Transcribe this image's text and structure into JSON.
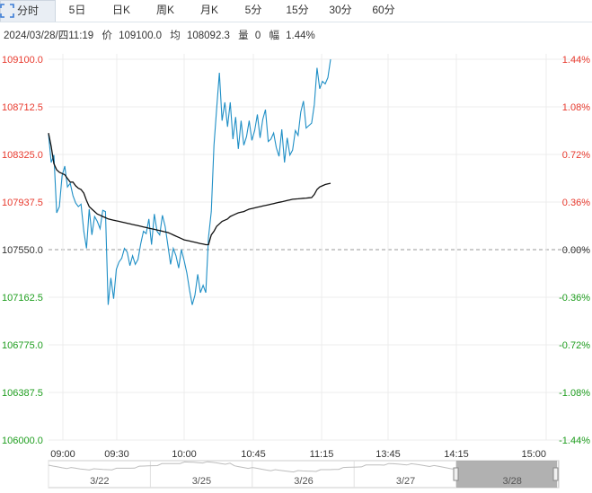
{
  "tabs": [
    {
      "label": "分时",
      "active": true
    },
    {
      "label": "5日",
      "active": false
    },
    {
      "label": "日K",
      "active": false
    },
    {
      "label": "周K",
      "active": false
    },
    {
      "label": "月K",
      "active": false
    },
    {
      "label": "5分",
      "active": false
    },
    {
      "label": "15分",
      "active": false
    },
    {
      "label": "30分",
      "active": false
    },
    {
      "label": "60分",
      "active": false
    }
  ],
  "fullscreen_icon": "expand-icon",
  "info": {
    "datetime": "2024/03/28/四11:19",
    "price_label": "价",
    "price": "109100.0",
    "avg_label": "均",
    "avg": "108092.3",
    "vol_label": "量",
    "vol": "0",
    "pct_label": "幅",
    "pct": "1.44%"
  },
  "colors": {
    "up": "#e83a2e",
    "down": "#1f9e1f",
    "flat": "#333333",
    "price_line": "#1f8fc6",
    "avg_line": "#111111",
    "grid": "#ececec",
    "navigator_fill": "#a3a3a3"
  },
  "chart_data": {
    "type": "line",
    "x_ticks": [
      "09:00",
      "09:30",
      "10:00",
      "10:45",
      "11:15",
      "13:45",
      "14:15",
      "15:00"
    ],
    "y_ticks": [
      "109100.0",
      "108712.5",
      "108325.0",
      "107937.5",
      "107550.0",
      "107162.5",
      "106775.0",
      "106387.5",
      "106000.0"
    ],
    "y_right_ticks": [
      "1.44%",
      "1.08%",
      "0.72%",
      "0.36%",
      "0.00%",
      "-0.36%",
      "-0.72%",
      "-1.08%",
      "-1.44%"
    ],
    "ylim": [
      106000.0,
      109100.0
    ],
    "baseline": 107550.0,
    "series": [
      {
        "values": [
          108490,
          108260,
          108320,
          107850,
          107900,
          108150,
          108230,
          108060,
          108090,
          107990,
          107930,
          107900,
          107920,
          107700,
          107560,
          107880,
          107670,
          107820,
          107780,
          107720,
          107870,
          107860,
          107100,
          107320,
          107150,
          107390,
          107450,
          107480,
          107560,
          107530,
          107420,
          107500,
          107430,
          107470,
          107600,
          107700,
          107680,
          107800,
          107590,
          107840,
          107700,
          107670,
          107830,
          107740,
          107590,
          107430,
          107560,
          107500,
          107400,
          107550,
          107460,
          107360,
          107220,
          107100,
          107180,
          107350,
          107200,
          107260,
          107200,
          107650,
          107860,
          108400,
          108700,
          108990,
          108600,
          108750,
          108550,
          108750,
          108450,
          108630,
          108370,
          108600,
          108400,
          108470,
          108600,
          108440,
          108520,
          108650,
          108460,
          108610,
          108690,
          108430,
          108450,
          108500,
          108380,
          108310,
          108530,
          108260,
          108460,
          108320,
          108360,
          108520,
          108480,
          108670,
          108760,
          108540,
          108560,
          108580,
          108730,
          109030,
          108860,
          108920,
          108900,
          108950,
          109100
        ]
      },
      {
        "values": [
          108500,
          108390,
          108250,
          108200,
          108180,
          108170,
          108160,
          108130,
          108100,
          108100,
          108070,
          108050,
          108040,
          108010,
          107950,
          107900,
          107880,
          107860,
          107840,
          107830,
          107820,
          107810,
          107800,
          107795,
          107790,
          107785,
          107780,
          107775,
          107770,
          107765,
          107760,
          107755,
          107750,
          107745,
          107740,
          107735,
          107730,
          107725,
          107720,
          107715,
          107710,
          107705,
          107700,
          107695,
          107690,
          107680,
          107670,
          107660,
          107650,
          107640,
          107630,
          107625,
          107620,
          107615,
          107610,
          107605,
          107600,
          107595,
          107590,
          107590,
          107670,
          107700,
          107740,
          107760,
          107780,
          107790,
          107800,
          107820,
          107830,
          107840,
          107850,
          107855,
          107860,
          107870,
          107880,
          107885,
          107890,
          107895,
          107900,
          107905,
          107910,
          107915,
          107920,
          107925,
          107930,
          107935,
          107940,
          107945,
          107950,
          107955,
          107960,
          107962,
          107964,
          107966,
          107968,
          107970,
          107972,
          107974,
          108000,
          108040,
          108060,
          108070,
          108080,
          108085,
          108090
        ]
      }
    ],
    "navigator": {
      "days": [
        "3/22",
        "3/25",
        "3/26",
        "3/27",
        "3/28"
      ],
      "ticks": [
        0,
        100,
        200,
        300,
        400,
        500
      ],
      "selected": "3/28"
    }
  }
}
